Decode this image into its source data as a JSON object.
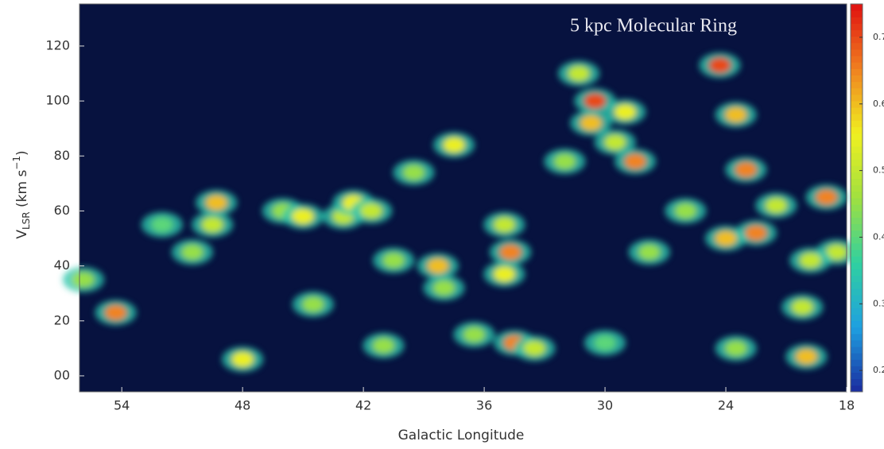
{
  "chart_data": {
    "type": "lv-map",
    "title": "5 kpc Molecular Ring",
    "xlabel": "Galactic Longitude",
    "ylabel": {
      "main": "V",
      "sub": "LSR",
      "rest": " (km s",
      "sup": "−1",
      "end": ")"
    },
    "xlim": [
      56.1,
      18
    ],
    "ylim": [
      -5.8,
      135.3
    ],
    "xticks": [
      54,
      48,
      42,
      36,
      30,
      24,
      18
    ],
    "yticks": [
      {
        "value": 0,
        "label": "00"
      },
      20,
      40,
      60,
      80,
      100,
      120
    ],
    "clim": [
      0.168,
      0.75
    ],
    "cticks": [
      0.2,
      0.3,
      0.4,
      0.5,
      0.6,
      0.7
    ],
    "background": "#07123f",
    "colormap": [
      "#1a2a9e",
      "#1ea0e0",
      "#30d0a0",
      "#a0e040",
      "#f0f020",
      "#f08020",
      "#e01010"
    ],
    "x": [
      55.9,
      54.3,
      52,
      50.5,
      49.5,
      49.3,
      48,
      46,
      45,
      44.5,
      43,
      42.5,
      41.6,
      41,
      40.5,
      39.5,
      38.3,
      38,
      37.5,
      36.5,
      35,
      34.7,
      35,
      34.5,
      33.5,
      32,
      30.5,
      30.7,
      31.3,
      29,
      28.5,
      29.5,
      27.8,
      30,
      26,
      24.3,
      24,
      23.5,
      23,
      22.5,
      21.5,
      23.5,
      20,
      19,
      18.5,
      19.8,
      20.2
    ],
    "y": [
      35,
      23,
      55,
      45,
      55,
      63,
      6,
      60,
      58,
      26,
      58,
      63,
      60,
      11,
      42,
      74,
      40,
      32,
      84,
      15,
      55,
      45,
      37,
      12,
      10,
      78,
      100,
      92,
      110,
      96,
      78,
      85,
      45,
      12,
      60,
      113,
      50,
      95,
      75,
      52,
      62,
      10,
      7,
      65,
      45,
      42,
      25
    ],
    "values": [
      0.45,
      0.65,
      0.4,
      0.45,
      0.5,
      0.6,
      0.55,
      0.45,
      0.55,
      0.45,
      0.5,
      0.55,
      0.5,
      0.45,
      0.45,
      0.45,
      0.6,
      0.45,
      0.55,
      0.45,
      0.5,
      0.65,
      0.55,
      0.65,
      0.5,
      0.45,
      0.7,
      0.6,
      0.5,
      0.55,
      0.65,
      0.5,
      0.45,
      0.4,
      0.45,
      0.7,
      0.6,
      0.6,
      0.65,
      0.65,
      0.5,
      0.45,
      0.6,
      0.65,
      0.5,
      0.5,
      0.5
    ]
  }
}
